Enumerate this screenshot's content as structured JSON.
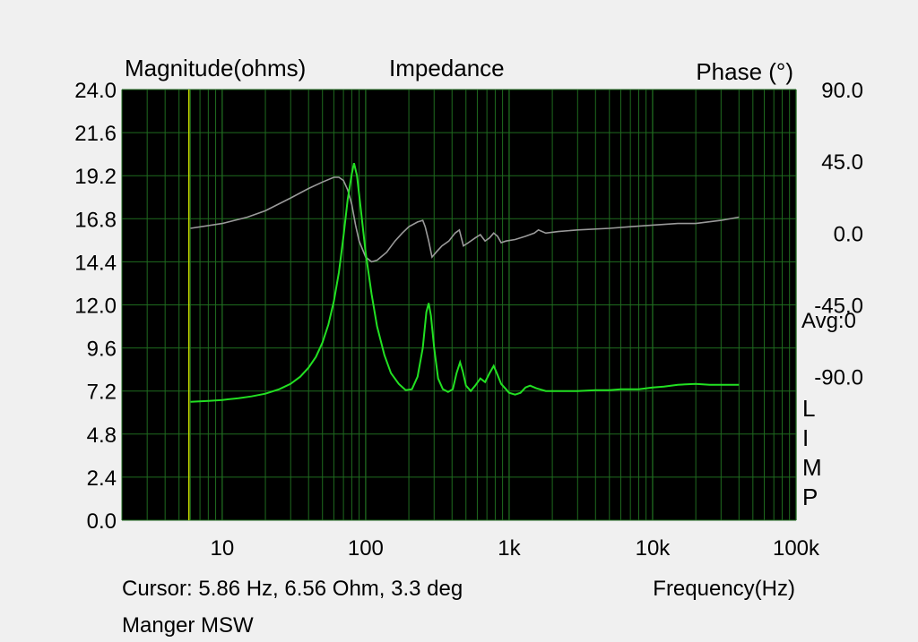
{
  "chart_data": {
    "type": "line",
    "title": "Impedance",
    "left_axis_label": "Magnitude(ohms)",
    "right_axis_label": "Phase (°)",
    "xlabel": "Frequency(Hz)",
    "x_scale": "log",
    "xlim": [
      2,
      100000
    ],
    "ylim": [
      0,
      24
    ],
    "y2lim": [
      -180,
      90
    ],
    "grid": true,
    "yticks": [
      "0.0",
      "2.4",
      "4.8",
      "7.2",
      "9.6",
      "12.0",
      "14.4",
      "16.8",
      "19.2",
      "21.6",
      "24.0"
    ],
    "y2ticks": [
      "90.0",
      "45.0",
      "0.0",
      "-45.0",
      "-90.0"
    ],
    "xticks": [
      {
        "value": 10,
        "label": "10"
      },
      {
        "value": 100,
        "label": "100"
      },
      {
        "value": 1000,
        "label": "1k"
      },
      {
        "value": 10000,
        "label": "10k"
      },
      {
        "value": 100000,
        "label": "100k"
      }
    ],
    "right_annotations": {
      "avg": "Avg:0",
      "legend_letters": [
        "L",
        "I",
        "M",
        "P"
      ]
    },
    "cursor_frequency_hz": 5.86,
    "cursor_text": "Cursor: 5.86 Hz, 6.56 Ohm, 3.3 deg",
    "device_name": "Manger MSW",
    "colors": {
      "plot_background": "#000000",
      "grid": "#1f6b1f",
      "cursor": "#c8e000",
      "magnitude": "#22e022",
      "phase": "#9a9a9a",
      "page_background": "#f0f0f0"
    },
    "series": [
      {
        "key": "magnitude",
        "axis": "left",
        "points": [
          [
            6,
            6.6
          ],
          [
            8,
            6.65
          ],
          [
            10,
            6.7
          ],
          [
            13,
            6.8
          ],
          [
            16,
            6.9
          ],
          [
            20,
            7.05
          ],
          [
            25,
            7.3
          ],
          [
            30,
            7.6
          ],
          [
            35,
            8.0
          ],
          [
            40,
            8.5
          ],
          [
            45,
            9.1
          ],
          [
            50,
            9.9
          ],
          [
            55,
            10.9
          ],
          [
            60,
            12.2
          ],
          [
            65,
            13.8
          ],
          [
            70,
            15.8
          ],
          [
            75,
            17.9
          ],
          [
            80,
            19.3
          ],
          [
            83,
            19.9
          ],
          [
            87,
            19.2
          ],
          [
            92,
            17.5
          ],
          [
            100,
            14.9
          ],
          [
            110,
            12.6
          ],
          [
            120,
            10.8
          ],
          [
            135,
            9.2
          ],
          [
            150,
            8.2
          ],
          [
            170,
            7.6
          ],
          [
            190,
            7.25
          ],
          [
            210,
            7.3
          ],
          [
            230,
            8.0
          ],
          [
            250,
            9.6
          ],
          [
            265,
            11.6
          ],
          [
            275,
            12.1
          ],
          [
            285,
            11.4
          ],
          [
            300,
            9.6
          ],
          [
            320,
            7.9
          ],
          [
            345,
            7.3
          ],
          [
            375,
            7.15
          ],
          [
            405,
            7.3
          ],
          [
            430,
            8.2
          ],
          [
            455,
            8.8
          ],
          [
            475,
            8.3
          ],
          [
            500,
            7.5
          ],
          [
            540,
            7.2
          ],
          [
            580,
            7.5
          ],
          [
            630,
            7.9
          ],
          [
            680,
            7.7
          ],
          [
            730,
            8.2
          ],
          [
            780,
            8.6
          ],
          [
            830,
            8.1
          ],
          [
            880,
            7.6
          ],
          [
            950,
            7.3
          ],
          [
            1000,
            7.1
          ],
          [
            1100,
            7.0
          ],
          [
            1200,
            7.1
          ],
          [
            1300,
            7.4
          ],
          [
            1400,
            7.5
          ],
          [
            1550,
            7.35
          ],
          [
            1800,
            7.2
          ],
          [
            2200,
            7.2
          ],
          [
            3000,
            7.2
          ],
          [
            4000,
            7.25
          ],
          [
            5000,
            7.25
          ],
          [
            6000,
            7.3
          ],
          [
            8000,
            7.3
          ],
          [
            10000,
            7.4
          ],
          [
            12000,
            7.45
          ],
          [
            15000,
            7.55
          ],
          [
            20000,
            7.6
          ],
          [
            25000,
            7.55
          ],
          [
            30000,
            7.55
          ],
          [
            40000,
            7.55
          ]
        ]
      },
      {
        "key": "phase",
        "axis": "right",
        "points": [
          [
            6,
            3
          ],
          [
            10,
            6
          ],
          [
            15,
            10
          ],
          [
            20,
            14
          ],
          [
            30,
            22
          ],
          [
            40,
            28
          ],
          [
            50,
            32
          ],
          [
            60,
            35
          ],
          [
            65,
            35
          ],
          [
            70,
            33
          ],
          [
            75,
            27
          ],
          [
            80,
            18
          ],
          [
            85,
            5
          ],
          [
            90,
            -5
          ],
          [
            100,
            -15
          ],
          [
            110,
            -18
          ],
          [
            120,
            -17
          ],
          [
            140,
            -12
          ],
          [
            160,
            -5
          ],
          [
            180,
            0
          ],
          [
            200,
            4
          ],
          [
            230,
            7
          ],
          [
            250,
            8
          ],
          [
            260,
            4
          ],
          [
            275,
            -5
          ],
          [
            290,
            -15
          ],
          [
            310,
            -12
          ],
          [
            340,
            -8
          ],
          [
            380,
            -5
          ],
          [
            420,
            0
          ],
          [
            450,
            2
          ],
          [
            480,
            -8
          ],
          [
            520,
            -6
          ],
          [
            580,
            -3
          ],
          [
            630,
            -1
          ],
          [
            680,
            -5
          ],
          [
            730,
            -3
          ],
          [
            780,
            0
          ],
          [
            830,
            -2
          ],
          [
            880,
            -6
          ],
          [
            950,
            -5
          ],
          [
            1100,
            -4
          ],
          [
            1300,
            -2
          ],
          [
            1500,
            0
          ],
          [
            1600,
            2
          ],
          [
            1800,
            0
          ],
          [
            2200,
            1
          ],
          [
            3000,
            2
          ],
          [
            5000,
            3
          ],
          [
            7000,
            4
          ],
          [
            10000,
            5
          ],
          [
            15000,
            6
          ],
          [
            20000,
            6
          ],
          [
            30000,
            8
          ],
          [
            40000,
            10
          ]
        ]
      }
    ]
  }
}
